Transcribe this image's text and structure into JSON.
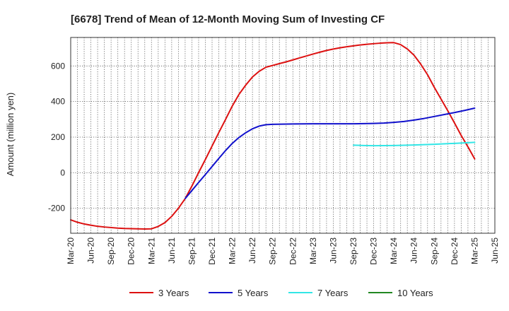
{
  "chart_data": {
    "type": "line",
    "title": "[6678]  Trend of Mean of 12-Month Moving Sum of Investing CF",
    "xlabel": "",
    "ylabel": "Amount (million yen)",
    "ylim": [
      -340,
      760
    ],
    "yticks": [
      -200,
      0,
      200,
      400,
      600
    ],
    "x_categories": [
      "Mar-20",
      "Jun-20",
      "Sep-20",
      "Dec-20",
      "Mar-21",
      "Jun-21",
      "Sep-21",
      "Dec-21",
      "Mar-22",
      "Jun-22",
      "Sep-22",
      "Dec-22",
      "Mar-23",
      "Jun-23",
      "Sep-23",
      "Dec-23",
      "Mar-24",
      "Jun-24",
      "Sep-24",
      "Dec-24",
      "Mar-25",
      "Jun-25"
    ],
    "grid": true,
    "legend_position": "bottom",
    "series": [
      {
        "name": "3 Years",
        "color": "#dd1111",
        "points": [
          [
            0,
            -265
          ],
          [
            0.33,
            -278
          ],
          [
            0.67,
            -288
          ],
          [
            1,
            -295
          ],
          [
            1.33,
            -301
          ],
          [
            1.67,
            -305
          ],
          [
            2,
            -308
          ],
          [
            2.33,
            -311
          ],
          [
            2.67,
            -313
          ],
          [
            3,
            -314
          ],
          [
            3.33,
            -315
          ],
          [
            3.67,
            -316
          ],
          [
            4,
            -315
          ],
          [
            4.33,
            -302
          ],
          [
            4.67,
            -280
          ],
          [
            5,
            -245
          ],
          [
            5.33,
            -200
          ],
          [
            5.67,
            -145
          ],
          [
            6,
            -75
          ],
          [
            6.33,
            0
          ],
          [
            6.67,
            75
          ],
          [
            7,
            150
          ],
          [
            7.33,
            225
          ],
          [
            7.67,
            300
          ],
          [
            8,
            375
          ],
          [
            8.33,
            440
          ],
          [
            8.67,
            493
          ],
          [
            9,
            538
          ],
          [
            9.33,
            570
          ],
          [
            9.67,
            593
          ],
          [
            10,
            603
          ],
          [
            10.33,
            613
          ],
          [
            10.67,
            623
          ],
          [
            11,
            634
          ],
          [
            11.33,
            645
          ],
          [
            11.67,
            656
          ],
          [
            12,
            667
          ],
          [
            12.33,
            677
          ],
          [
            12.67,
            687
          ],
          [
            13,
            695
          ],
          [
            13.33,
            702
          ],
          [
            13.67,
            708
          ],
          [
            14,
            713
          ],
          [
            14.33,
            718
          ],
          [
            14.67,
            722
          ],
          [
            15,
            725
          ],
          [
            15.33,
            728
          ],
          [
            15.67,
            730
          ],
          [
            16,
            731
          ],
          [
            16.33,
            720
          ],
          [
            16.67,
            695
          ],
          [
            17,
            660
          ],
          [
            17.33,
            610
          ],
          [
            17.67,
            550
          ],
          [
            18,
            480
          ],
          [
            18.33,
            415
          ],
          [
            18.67,
            348
          ],
          [
            19,
            280
          ],
          [
            19.33,
            210
          ],
          [
            19.67,
            145
          ],
          [
            20,
            78
          ]
        ]
      },
      {
        "name": "5 Years",
        "color": "#1111cc",
        "points": [
          [
            5.67,
            -145
          ],
          [
            6,
            -100
          ],
          [
            6.33,
            -55
          ],
          [
            6.67,
            -10
          ],
          [
            7,
            35
          ],
          [
            7.33,
            80
          ],
          [
            7.67,
            125
          ],
          [
            8,
            165
          ],
          [
            8.33,
            198
          ],
          [
            8.67,
            225
          ],
          [
            9,
            247
          ],
          [
            9.33,
            262
          ],
          [
            9.67,
            270
          ],
          [
            10,
            272
          ],
          [
            11,
            274
          ],
          [
            12,
            275
          ],
          [
            13,
            275
          ],
          [
            14,
            275
          ],
          [
            15,
            277
          ],
          [
            15.5,
            279
          ],
          [
            16,
            283
          ],
          [
            16.5,
            288
          ],
          [
            17,
            296
          ],
          [
            17.5,
            305
          ],
          [
            18,
            316
          ],
          [
            18.5,
            327
          ],
          [
            19,
            338
          ],
          [
            19.5,
            350
          ],
          [
            20,
            363
          ]
        ]
      },
      {
        "name": "7 Years",
        "color": "#33e6e6",
        "points": [
          [
            14,
            155
          ],
          [
            14.5,
            153
          ],
          [
            15,
            152
          ],
          [
            16,
            153
          ],
          [
            17,
            156
          ],
          [
            18,
            160
          ],
          [
            19,
            165
          ],
          [
            19.5,
            168
          ],
          [
            20,
            171
          ]
        ]
      },
      {
        "name": "10 Years",
        "color": "#228822",
        "points": []
      }
    ]
  }
}
